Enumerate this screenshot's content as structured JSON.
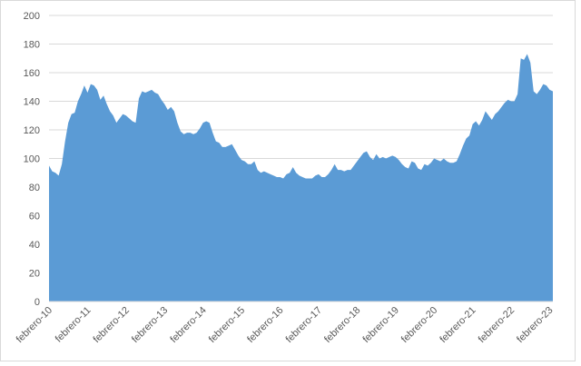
{
  "chart_data": {
    "type": "area",
    "color": "#5b9bd5",
    "grid": true,
    "ylim": [
      0,
      200
    ],
    "yticks": [
      0,
      20,
      40,
      60,
      80,
      100,
      120,
      140,
      160,
      180,
      200
    ],
    "categories": [
      "febrero-10",
      null,
      null,
      null,
      null,
      null,
      null,
      null,
      null,
      null,
      null,
      null,
      "febrero-11",
      null,
      null,
      null,
      null,
      null,
      null,
      null,
      null,
      null,
      null,
      null,
      "febrero-12",
      null,
      null,
      null,
      null,
      null,
      null,
      null,
      null,
      null,
      null,
      null,
      "febrero-13",
      null,
      null,
      null,
      null,
      null,
      null,
      null,
      null,
      null,
      null,
      null,
      "febrero-14",
      null,
      null,
      null,
      null,
      null,
      null,
      null,
      null,
      null,
      null,
      null,
      "febrero-15",
      null,
      null,
      null,
      null,
      null,
      null,
      null,
      null,
      null,
      null,
      null,
      "febrero-16",
      null,
      null,
      null,
      null,
      null,
      null,
      null,
      null,
      null,
      null,
      null,
      "febrero-17",
      null,
      null,
      null,
      null,
      null,
      null,
      null,
      null,
      null,
      null,
      null,
      "febrero-18",
      null,
      null,
      null,
      null,
      null,
      null,
      null,
      null,
      null,
      null,
      null,
      "febrero-19",
      null,
      null,
      null,
      null,
      null,
      null,
      null,
      null,
      null,
      null,
      null,
      "febrero-20",
      null,
      null,
      null,
      null,
      null,
      null,
      null,
      null,
      null,
      null,
      null,
      "febrero-21",
      null,
      null,
      null,
      null,
      null,
      null,
      null,
      null,
      null,
      null,
      null,
      "febrero-22",
      null,
      null,
      null,
      null,
      null,
      null,
      null,
      null,
      null,
      null,
      null,
      "febrero-23",
      null
    ],
    "values": [
      95,
      91,
      90,
      88,
      96,
      112,
      125,
      131,
      132,
      140,
      145,
      151,
      146,
      152,
      151,
      148,
      141,
      144,
      138,
      133,
      130,
      125,
      128,
      131,
      130,
      128,
      126,
      125,
      142,
      147,
      146,
      147,
      148,
      146,
      145,
      141,
      138,
      134,
      136,
      133,
      125,
      119,
      117,
      118,
      118,
      117,
      118,
      121,
      125,
      126,
      125,
      118,
      112,
      111,
      108,
      108,
      109,
      110,
      106,
      102,
      99,
      98,
      96,
      96,
      98,
      92,
      90,
      91,
      90,
      89,
      88,
      87,
      87,
      86,
      89,
      90,
      94,
      90,
      88,
      87,
      86,
      86,
      86,
      88,
      89,
      87,
      87,
      89,
      92,
      96,
      92,
      92,
      91,
      92,
      92,
      95,
      98,
      101,
      104,
      105,
      101,
      99,
      103,
      100,
      101,
      100,
      101,
      102,
      101,
      99,
      96,
      94,
      93,
      98,
      97,
      93,
      92,
      96,
      95,
      97,
      100,
      99,
      98,
      100,
      98,
      97,
      97,
      98,
      103,
      109,
      114,
      116,
      124,
      126,
      123,
      127,
      133,
      130,
      127,
      131,
      133,
      136,
      139,
      141,
      140,
      140,
      145,
      170,
      169,
      173,
      167,
      147,
      145,
      148,
      152,
      151,
      148,
      147
    ]
  }
}
